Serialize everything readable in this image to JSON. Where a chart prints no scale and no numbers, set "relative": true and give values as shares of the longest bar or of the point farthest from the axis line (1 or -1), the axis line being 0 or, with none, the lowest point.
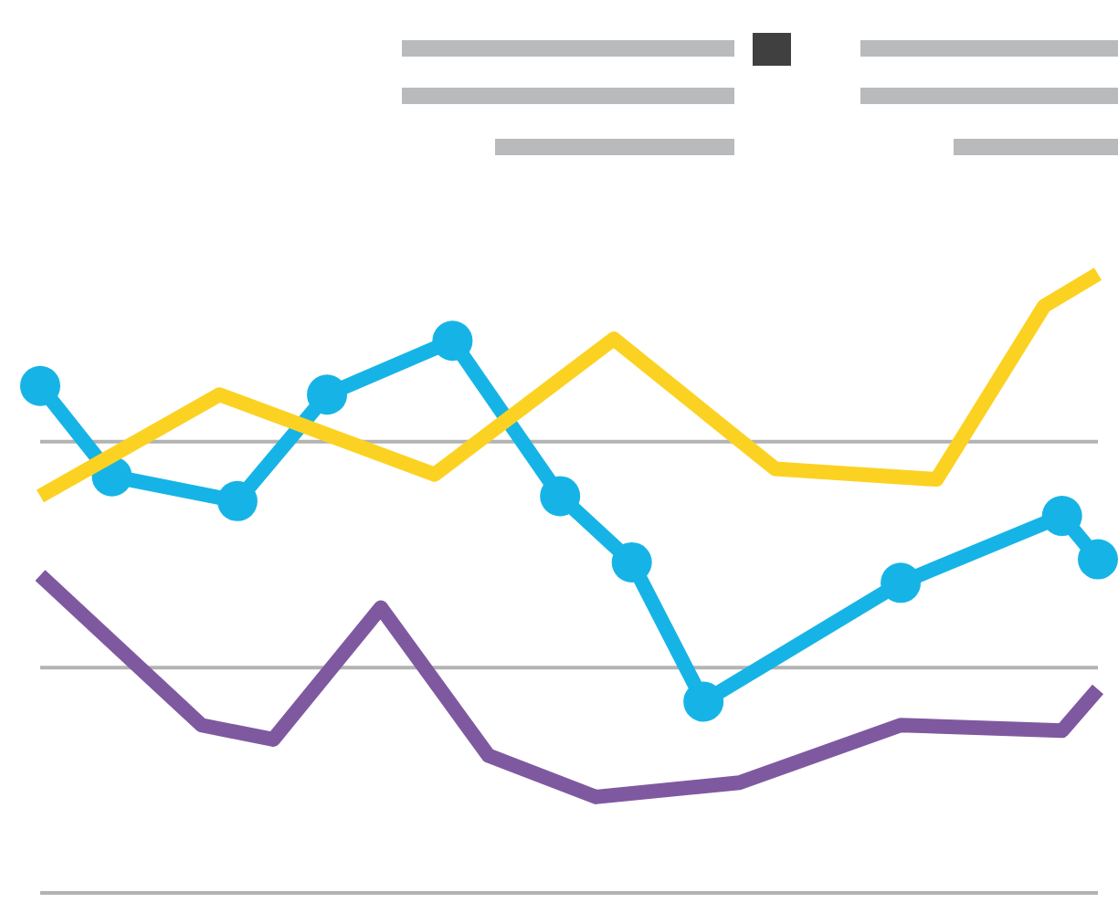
{
  "chart_data": {
    "type": "line",
    "relative": true,
    "categories": [
      null,
      null,
      null,
      null,
      null,
      null,
      null,
      null,
      null,
      null,
      null,
      null,
      null,
      null,
      null,
      null,
      null,
      null,
      null,
      null,
      null,
      null,
      null,
      null,
      null,
      null,
      null,
      null,
      null,
      null,
      null,
      null,
      null,
      null,
      null,
      null,
      null,
      null,
      null,
      null,
      null,
      null,
      null,
      null,
      null,
      null,
      null,
      null,
      null,
      null,
      null,
      null,
      null,
      null,
      null,
      null,
      null,
      null,
      null,
      null
    ],
    "ref_lines": [
      {
        "axis": "y",
        "value": 0,
        "color": "#b3b3b3"
      },
      {
        "axis": "y",
        "value": 0.364,
        "color": "#b3b3b3"
      },
      {
        "axis": "y",
        "value": 0.729,
        "color": "#b3b3b3"
      }
    ],
    "legend": false,
    "line_style": "solid",
    "series": [
      {
        "color": "#fcd222",
        "marker": "none",
        "values": [
          0.641,
          null,
          null,
          null,
          null,
          null,
          null,
          null,
          null,
          null,
          0.805,
          null,
          null,
          null,
          null,
          null,
          null,
          null,
          null,
          null,
          null,
          null,
          0.676,
          null,
          null,
          null,
          null,
          null,
          null,
          null,
          null,
          null,
          0.895,
          null,
          null,
          null,
          null,
          null,
          null,
          null,
          null,
          0.685,
          null,
          null,
          null,
          null,
          null,
          null,
          null,
          null,
          0.668,
          null,
          null,
          null,
          null,
          null,
          0.948,
          null,
          null,
          1
        ]
      },
      {
        "color": "#7f59a0",
        "marker": "none",
        "values": [
          0.513,
          null,
          null,
          null,
          null,
          null,
          null,
          null,
          null,
          0.271,
          null,
          null,
          null,
          0.248,
          null,
          null,
          null,
          null,
          null,
          0.461,
          null,
          null,
          null,
          null,
          null,
          0.222,
          null,
          null,
          null,
          null,
          null,
          0.155,
          null,
          null,
          null,
          null,
          null,
          null,
          null,
          0.178,
          null,
          null,
          null,
          null,
          null,
          null,
          null,
          null,
          0.271,
          null,
          null,
          null,
          null,
          null,
          null,
          null,
          null,
          0.262,
          null,
          0.329
        ]
      },
      {
        "color": "#16b4e6",
        "marker": "circle",
        "values": [
          0.819,
          null,
          null,
          null,
          0.673,
          null,
          null,
          null,
          null,
          null,
          null,
          0.633,
          null,
          null,
          null,
          null,
          0.805,
          null,
          null,
          null,
          null,
          null,
          null,
          0.892,
          null,
          null,
          null,
          null,
          null,
          0.641,
          null,
          null,
          null,
          0.534,
          null,
          null,
          null,
          0.309,
          null,
          null,
          null,
          null,
          null,
          null,
          null,
          null,
          null,
          null,
          0.501,
          null,
          null,
          null,
          null,
          null,
          null,
          null,
          null,
          0.609,
          null,
          0.539
        ]
      }
    ]
  }
}
